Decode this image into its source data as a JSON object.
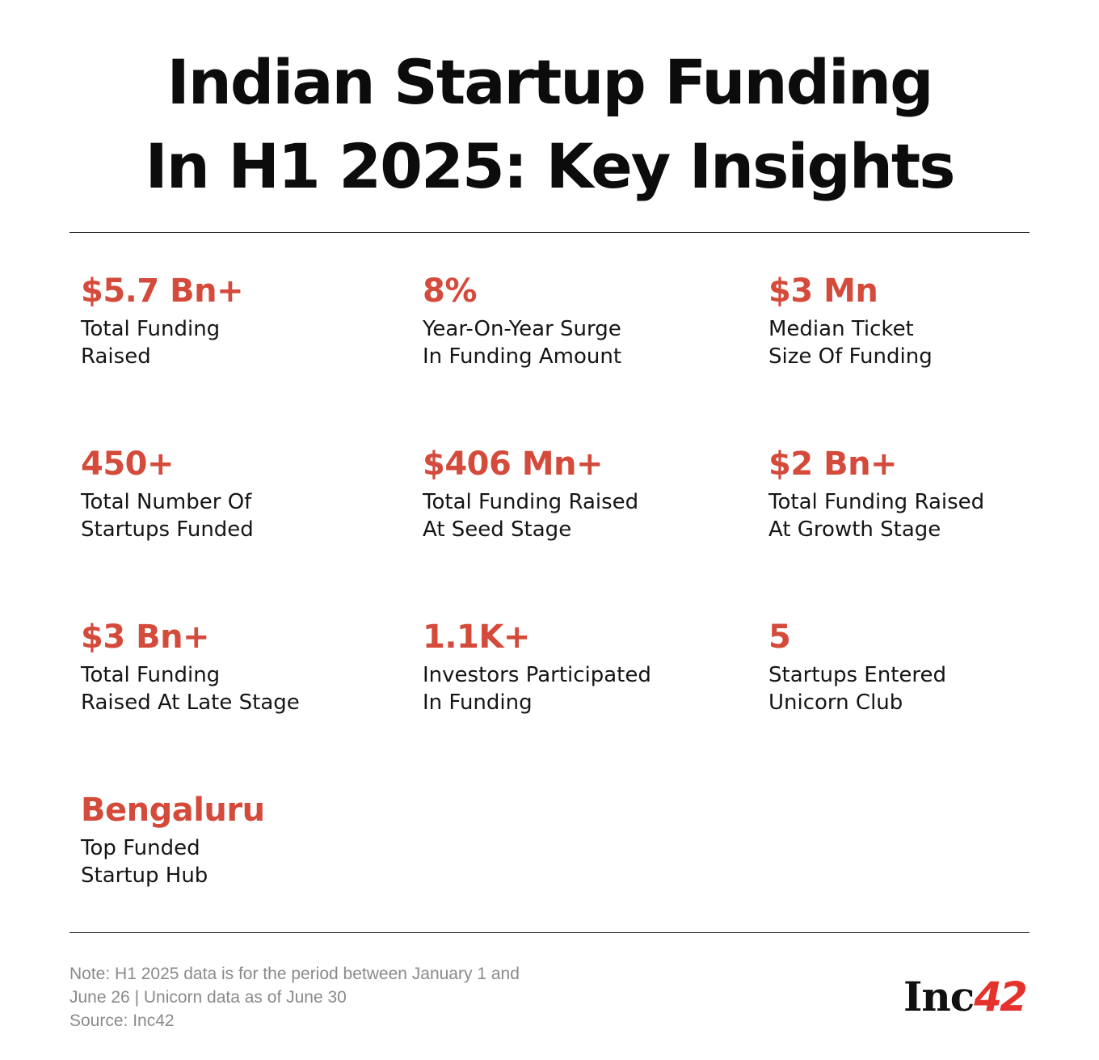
{
  "header": {
    "title_line1": "Indian Startup Funding",
    "title_line2": "In H1 2025: Key Insights"
  },
  "accent_color": "#d44a3b",
  "stats": [
    {
      "value": "$5.7 Bn+",
      "label_line1": "Total Funding",
      "label_line2": "Raised"
    },
    {
      "value": "8%",
      "label_line1": "Year-On-Year Surge",
      "label_line2": "In Funding Amount"
    },
    {
      "value": "$3 Mn",
      "label_line1": "Median Ticket",
      "label_line2": "Size Of Funding"
    },
    {
      "value": "450+",
      "label_line1": "Total Number Of",
      "label_line2": "Startups Funded"
    },
    {
      "value": "$406 Mn+",
      "label_line1": "Total Funding Raised",
      "label_line2": "At Seed Stage"
    },
    {
      "value": "$2 Bn+",
      "label_line1": "Total Funding Raised",
      "label_line2": "At Growth Stage"
    },
    {
      "value": "$3 Bn+",
      "label_line1": "Total Funding",
      "label_line2": "Raised At Late Stage"
    },
    {
      "value": "1.1K+",
      "label_line1": "Investors Participated",
      "label_line2": "In Funding"
    },
    {
      "value": "5",
      "label_line1": "Startups Entered",
      "label_line2": "Unicorn Club"
    },
    {
      "value": "Bengaluru",
      "label_line1": "Top Funded",
      "label_line2": "Startup Hub"
    }
  ],
  "footer": {
    "note_line1": "Note: H1 2025 data is for the period between January 1 and",
    "note_line2": "June 26 | Unicorn data as of June 30",
    "source": "Source: Inc42"
  },
  "logo": {
    "text": "Inc",
    "number": "42",
    "brand_color": "#e5322d"
  }
}
